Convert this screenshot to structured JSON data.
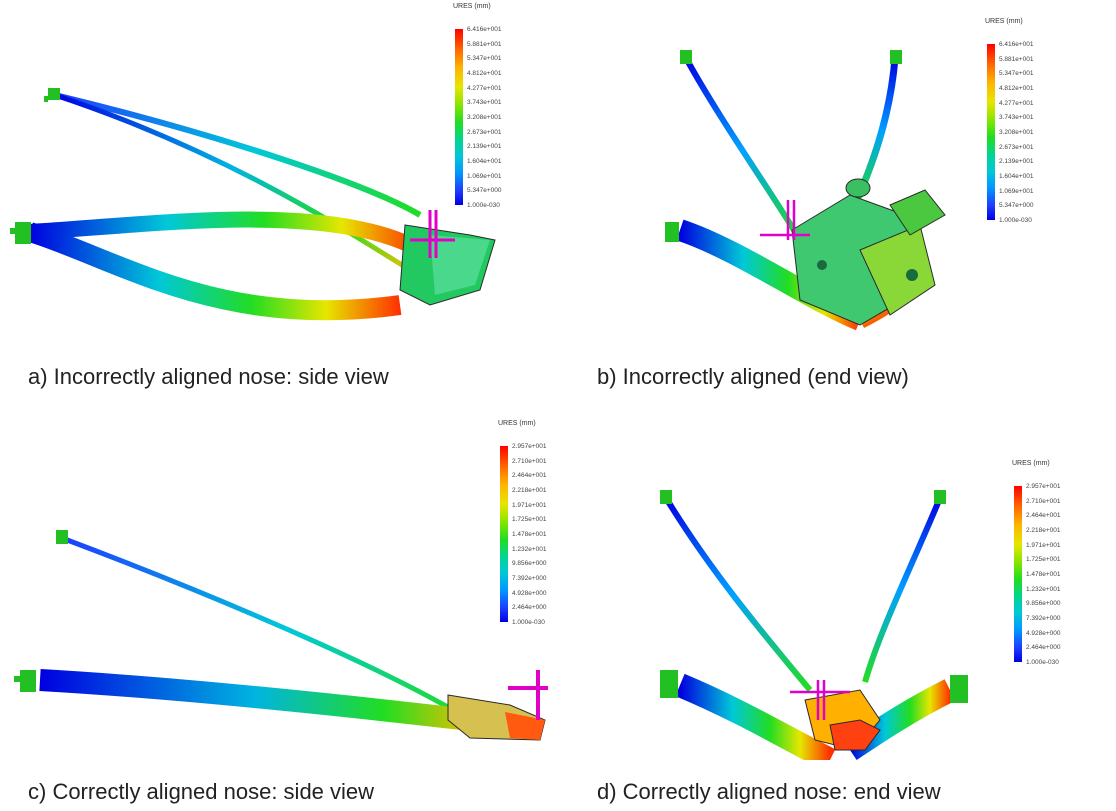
{
  "colors": {
    "max": "#ff0000",
    "mid": "#22dd22",
    "min": "#0000e0",
    "load_arrow": "#e000c8",
    "fixture": "#22c022"
  },
  "panels": [
    {
      "caption": "a)    Incorrectly aligned nose: side view",
      "legend": {
        "title": "URES (mm)",
        "ticks": [
          "6.416e+001",
          "5.881e+001",
          "5.347e+001",
          "4.812e+001",
          "4.277e+001",
          "3.743e+001",
          "3.208e+001",
          "2.673e+001",
          "2.139e+001",
          "1.604e+001",
          "1.069e+001",
          "5.347e+000",
          "1.000e-030"
        ]
      }
    },
    {
      "caption": "b) Incorrectly aligned (end view)",
      "legend": {
        "title": "URES (mm)",
        "ticks": [
          "6.416e+001",
          "5.881e+001",
          "5.347e+001",
          "4.812e+001",
          "4.277e+001",
          "3.743e+001",
          "3.208e+001",
          "2.673e+001",
          "2.139e+001",
          "1.604e+001",
          "1.069e+001",
          "5.347e+000",
          "1.000e-030"
        ]
      }
    },
    {
      "caption": "c)    Correctly aligned nose: side view",
      "legend": {
        "title": "URES (mm)",
        "ticks": [
          "2.957e+001",
          "2.710e+001",
          "2.464e+001",
          "2.218e+001",
          "1.971e+001",
          "1.725e+001",
          "1.478e+001",
          "1.232e+001",
          "9.856e+000",
          "7.392e+000",
          "4.928e+000",
          "2.464e+000",
          "1.000e-030"
        ]
      }
    },
    {
      "caption": "d) Correctly aligned nose: end view",
      "legend": {
        "title": "URES (mm)",
        "ticks": [
          "2.957e+001",
          "2.710e+001",
          "2.464e+001",
          "2.218e+001",
          "1.971e+001",
          "1.725e+001",
          "1.478e+001",
          "1.232e+001",
          "9.856e+000",
          "7.392e+000",
          "4.928e+000",
          "2.464e+000",
          "1.000e-030"
        ]
      }
    }
  ]
}
